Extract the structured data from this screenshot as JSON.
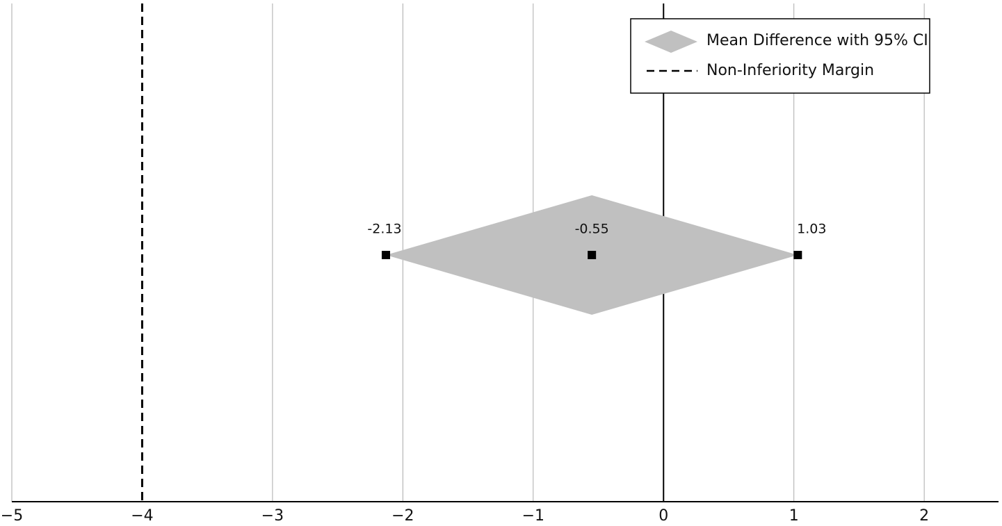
{
  "chart_data": {
    "type": "forest",
    "series": [
      {
        "name": "Mean Difference with 95% CI",
        "color": "#c0c0c0",
        "values": [
          -2.13,
          -0.55,
          1.03
        ]
      }
    ],
    "margin": {
      "name": "Non-Inferiority Margin",
      "value": -4
    },
    "reference_line": 0,
    "xlim": [
      -5,
      2.57
    ],
    "xticks": [
      {
        "value": -5,
        "label": "−5"
      },
      {
        "value": -4,
        "label": "−4"
      },
      {
        "value": -3,
        "label": "−3"
      },
      {
        "value": -2,
        "label": "−2"
      },
      {
        "value": -1,
        "label": "−1"
      },
      0,
      1,
      2
    ],
    "grid": true,
    "legend": "top-right"
  }
}
